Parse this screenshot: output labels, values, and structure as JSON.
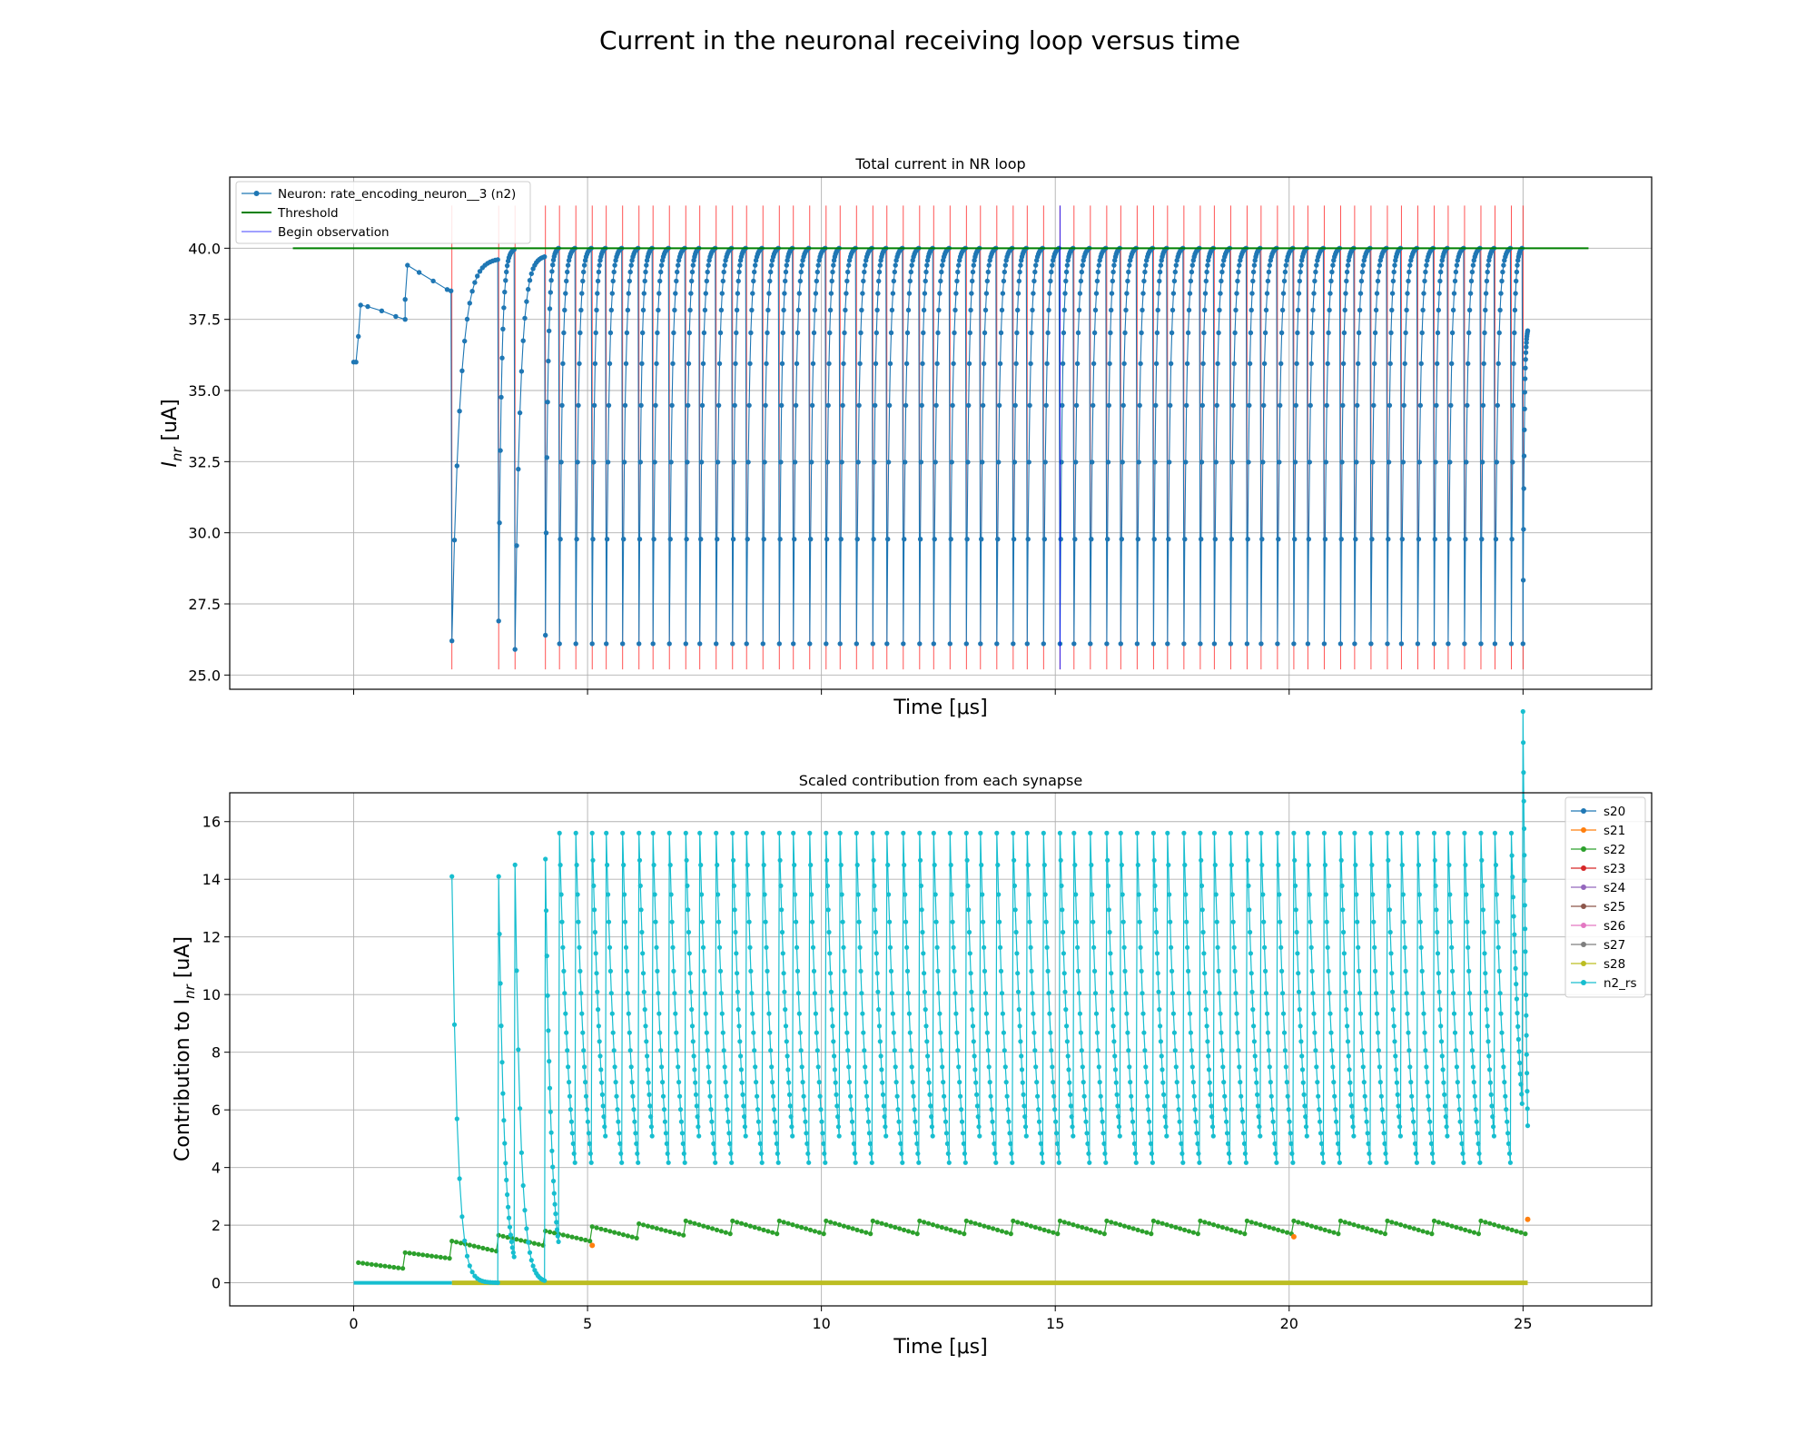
{
  "figure": {
    "suptitle": "Current in the neuronal receiving loop versus time"
  },
  "chart_data": [
    {
      "type": "line",
      "title": "Total current in NR loop",
      "xlabel": "Time [μs]",
      "ylabel_main": "I",
      "ylabel_sub": "nr",
      "ylabel_unit": " [uA]",
      "xlim": [
        -2.65,
        27.75
      ],
      "ylim": [
        24.5,
        42.5
      ],
      "xticks": [
        0,
        5,
        10,
        15,
        20,
        25
      ],
      "xticks_labeled": false,
      "yticks": [
        25.0,
        27.5,
        30.0,
        32.5,
        35.0,
        37.5,
        40.0
      ],
      "ytick_labels": [
        "25.0",
        "27.5",
        "30.0",
        "32.5",
        "35.0",
        "37.5",
        "40.0"
      ],
      "grid": true,
      "legend_position": "upper-left",
      "legend": [
        {
          "label": "Neuron: rate_encoding_neuron__3 (n2)",
          "color": "#1f77b4",
          "style": "line-marker"
        },
        {
          "label": "Threshold",
          "color": "#008000",
          "style": "line"
        },
        {
          "label": "Begin observation",
          "color": "#0000ff",
          "style": "thin-line"
        }
      ],
      "threshold": {
        "value": 40.0,
        "x_start": -1.3,
        "x_end": 26.4,
        "color": "#008000"
      },
      "begin_observation": {
        "x": 15.1,
        "color": "#0000ff"
      },
      "spike_lines_color": "#ff0000",
      "spike_lines_ymin": 25.2,
      "spike_lines_ymax": 41.5,
      "spike_times": [
        2.1,
        3.1,
        3.45,
        4.1,
        4.4,
        4.75,
        5.1,
        5.4,
        5.75,
        6.1,
        6.4,
        6.75,
        7.1,
        7.4,
        7.75,
        8.1,
        8.4,
        8.75,
        9.1,
        9.4,
        9.75,
        10.1,
        10.4,
        10.75,
        11.1,
        11.4,
        11.75,
        12.1,
        12.4,
        12.75,
        13.1,
        13.4,
        13.75,
        14.1,
        14.4,
        14.75,
        15.1,
        15.4,
        15.75,
        16.1,
        16.4,
        16.75,
        17.1,
        17.4,
        17.75,
        18.1,
        18.4,
        18.75,
        19.1,
        19.4,
        19.75,
        20.1,
        20.4,
        20.75,
        21.1,
        21.4,
        21.75,
        22.1,
        22.4,
        22.75,
        23.1,
        23.4,
        23.75,
        24.1,
        24.4,
        24.75,
        25.0
      ],
      "series": [
        {
          "name": "Neuron: rate_encoding_neuron__3 (n2)",
          "color": "#1f77b4",
          "points_note": "",
          "initial": [
            [
              0.0,
              36.0
            ],
            [
              0.05,
              36.0
            ],
            [
              0.1,
              36.9
            ],
            [
              0.15,
              38.0
            ],
            [
              0.3,
              37.95
            ],
            [
              0.6,
              37.8
            ],
            [
              0.9,
              37.6
            ],
            [
              1.1,
              37.5
            ],
            [
              1.1,
              38.2
            ],
            [
              1.15,
              39.4
            ],
            [
              1.4,
              39.15
            ],
            [
              1.7,
              38.85
            ],
            [
              2.0,
              38.55
            ],
            [
              2.08,
              38.5
            ]
          ],
          "cycles": [
            {
              "t0": 2.1,
              "t1": 3.08,
              "min": 26.2,
              "peak": 39.6,
              "end": 39.2
            },
            {
              "t0": 3.1,
              "t1": 3.43,
              "min": 26.9,
              "peak": 39.95,
              "end": 39.95
            },
            {
              "t0": 3.45,
              "t1": 4.08,
              "min": 25.9,
              "peak": 39.7,
              "end": 39.7
            },
            {
              "t0": 4.1,
              "t1": 4.38,
              "min": 26.4,
              "peak": 40.0,
              "end": 40.0
            }
          ],
          "regular_cycle": {
            "min": 26.1,
            "peak": 40.0
          }
        }
      ]
    },
    {
      "type": "line",
      "title": "Scaled contribution from each synapse",
      "xlabel": "Time [μs]",
      "ylabel_main": "Contribution to I",
      "ylabel_sub": "nr",
      "ylabel_unit": " [uA]",
      "xlim": [
        -2.65,
        27.75
      ],
      "ylim": [
        -0.8,
        17.0
      ],
      "xticks": [
        0,
        5,
        10,
        15,
        20,
        25
      ],
      "xtick_labels": [
        "0",
        "5",
        "10",
        "15",
        "20",
        "25"
      ],
      "yticks": [
        0,
        2,
        4,
        6,
        8,
        10,
        12,
        14,
        16
      ],
      "ytick_labels": [
        "0",
        "2",
        "4",
        "6",
        "8",
        "10",
        "12",
        "14",
        "16"
      ],
      "grid": true,
      "legend_position": "upper-right",
      "legend": [
        {
          "label": "s20",
          "color": "#1f77b4"
        },
        {
          "label": "s21",
          "color": "#ff7f0e"
        },
        {
          "label": "s22",
          "color": "#2ca02c"
        },
        {
          "label": "s23",
          "color": "#d62728"
        },
        {
          "label": "s24",
          "color": "#9467bd"
        },
        {
          "label": "s25",
          "color": "#8c564b"
        },
        {
          "label": "s26",
          "color": "#e377c2"
        },
        {
          "label": "s27",
          "color": "#7f7f7f"
        },
        {
          "label": "s28",
          "color": "#bcbd22"
        },
        {
          "label": "n2_rs",
          "color": "#17becf"
        }
      ],
      "series": [
        {
          "name": "s22",
          "color": "#2ca02c",
          "sawtooth_start": [
            0.7,
            1.05,
            1.45,
            1.65,
            1.8,
            1.95,
            2.05,
            2.15
          ],
          "sawtooth_end": [
            0.5,
            0.85,
            1.1,
            1.3,
            1.45,
            1.55,
            1.65,
            1.7
          ],
          "period": 1.0
        },
        {
          "name": "s21",
          "color": "#ff7f0e",
          "marks": [
            [
              5.1,
              1.3
            ],
            [
              20.1,
              1.6
            ],
            [
              25.1,
              2.2
            ]
          ]
        },
        {
          "name": "s28",
          "color": "#bcbd22",
          "baseline": 0.0,
          "x_start": 2.1,
          "x_end": 25.1
        },
        {
          "name": "n2_rs",
          "color": "#17becf",
          "peaks_early": [
            [
              2.1,
              14.1
            ],
            [
              3.1,
              14.1
            ],
            [
              3.45,
              14.5
            ],
            [
              4.1,
              14.7
            ]
          ],
          "peak_regular": 15.6
        }
      ]
    }
  ]
}
